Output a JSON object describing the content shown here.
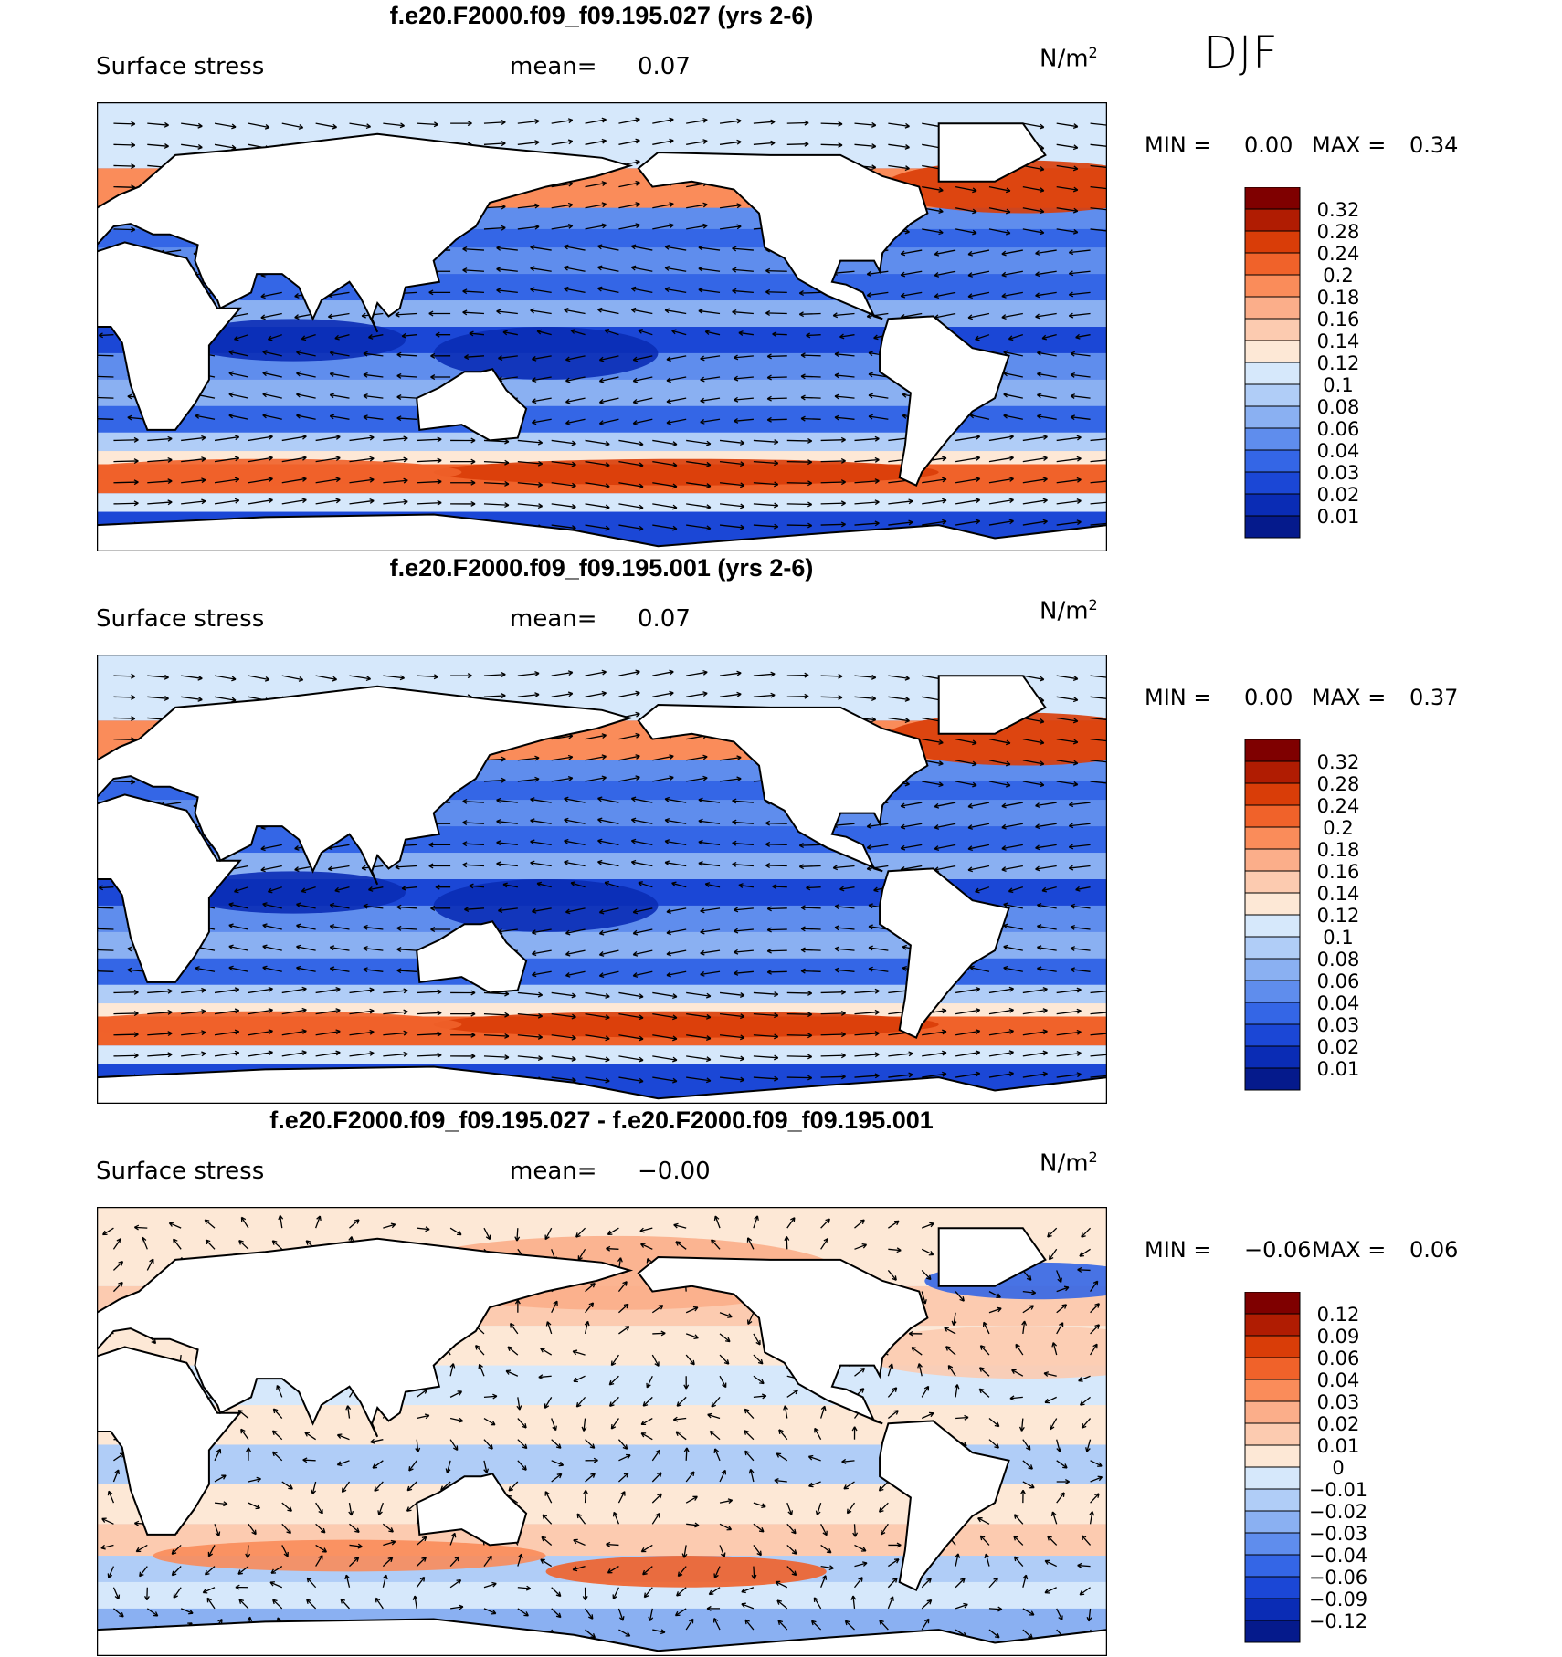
{
  "season": "DJF",
  "panels": [
    {
      "title": "f.e20.F2000.f09_f09.195.027 (yrs 2-6)",
      "variable": "Surface stress",
      "mean_label": "mean=",
      "mean_value": "0.07",
      "units": "N/m",
      "units_exp": "2",
      "min_label": "MIN =",
      "min_value": "0.00",
      "max_label": "MAX =",
      "max_value": "0.34"
    },
    {
      "title": "f.e20.F2000.f09_f09.195.001 (yrs 2-6)",
      "variable": "Surface stress",
      "mean_label": "mean=",
      "mean_value": "0.07",
      "units": "N/m",
      "units_exp": "2",
      "min_label": "MIN =",
      "min_value": "0.00",
      "max_label": "MAX =",
      "max_value": "0.37"
    },
    {
      "title": "f.e20.F2000.f09_f09.195.027 - f.e20.F2000.f09_f09.195.001",
      "variable": "Surface stress",
      "mean_label": "mean=",
      "mean_value": "−0.00",
      "units": "N/m",
      "units_exp": "2",
      "min_label": "MIN =",
      "min_value": "−0.06",
      "max_label": "MAX =",
      "max_value": "0.06"
    }
  ],
  "colorbars": {
    "abs": {
      "labels": [
        "0.32",
        "0.28",
        "0.24",
        "0.2",
        "0.18",
        "0.16",
        "0.14",
        "0.12",
        "0.1",
        "0.08",
        "0.06",
        "0.04",
        "0.03",
        "0.02",
        "0.01"
      ],
      "colors": [
        "#7f0000",
        "#b01c02",
        "#d93d08",
        "#f0622a",
        "#fa8c5a",
        "#fbae8a",
        "#fccbb0",
        "#fde8d6",
        "#d6e8fb",
        "#b0cdf7",
        "#8ab0f2",
        "#5f8ded",
        "#3466e6",
        "#1b47d6",
        "#0a2cb5",
        "#051a8c"
      ]
    },
    "diff": {
      "labels": [
        "0.12",
        "0.09",
        "0.06",
        "0.04",
        "0.03",
        "0.02",
        "0.01",
        "0",
        "−0.01",
        "−0.02",
        "−0.03",
        "−0.04",
        "−0.06",
        "−0.09",
        "−0.12"
      ],
      "colors": [
        "#7f0000",
        "#b01c02",
        "#d93d08",
        "#f0622a",
        "#fa8c5a",
        "#fbae8a",
        "#fccbb0",
        "#fde8d6",
        "#d6e8fb",
        "#b0cdf7",
        "#8ab0f2",
        "#5f8ded",
        "#3466e6",
        "#1b47d6",
        "#0a2cb5",
        "#051a8c"
      ]
    }
  },
  "chart_data": [
    {
      "type": "heatmap",
      "title": "f.e20.F2000.f09_f09.195.027 (yrs 2-6)",
      "subtitle": "Surface stress",
      "units": "N/m2",
      "season": "DJF",
      "mean": 0.07,
      "min": 0.0,
      "max": 0.34,
      "levels": [
        0.01,
        0.02,
        0.03,
        0.04,
        0.06,
        0.08,
        0.1,
        0.12,
        0.14,
        0.16,
        0.18,
        0.2,
        0.24,
        0.28,
        0.32
      ],
      "regime": "absolute",
      "overlay": "wind stress vectors"
    },
    {
      "type": "heatmap",
      "title": "f.e20.F2000.f09_f09.195.001 (yrs 2-6)",
      "subtitle": "Surface stress",
      "units": "N/m2",
      "season": "DJF",
      "mean": 0.07,
      "min": 0.0,
      "max": 0.37,
      "levels": [
        0.01,
        0.02,
        0.03,
        0.04,
        0.06,
        0.08,
        0.1,
        0.12,
        0.14,
        0.16,
        0.18,
        0.2,
        0.24,
        0.28,
        0.32
      ],
      "regime": "absolute",
      "overlay": "wind stress vectors"
    },
    {
      "type": "heatmap",
      "title": "f.e20.F2000.f09_f09.195.027 - f.e20.F2000.f09_f09.195.001",
      "subtitle": "Surface stress",
      "units": "N/m2",
      "season": "DJF",
      "mean": -0.0,
      "min": -0.06,
      "max": 0.06,
      "levels": [
        -0.12,
        -0.09,
        -0.06,
        -0.04,
        -0.03,
        -0.02,
        -0.01,
        0,
        0.01,
        0.02,
        0.03,
        0.04,
        0.06,
        0.09,
        0.12
      ],
      "regime": "difference",
      "overlay": "wind stress difference vectors"
    }
  ]
}
